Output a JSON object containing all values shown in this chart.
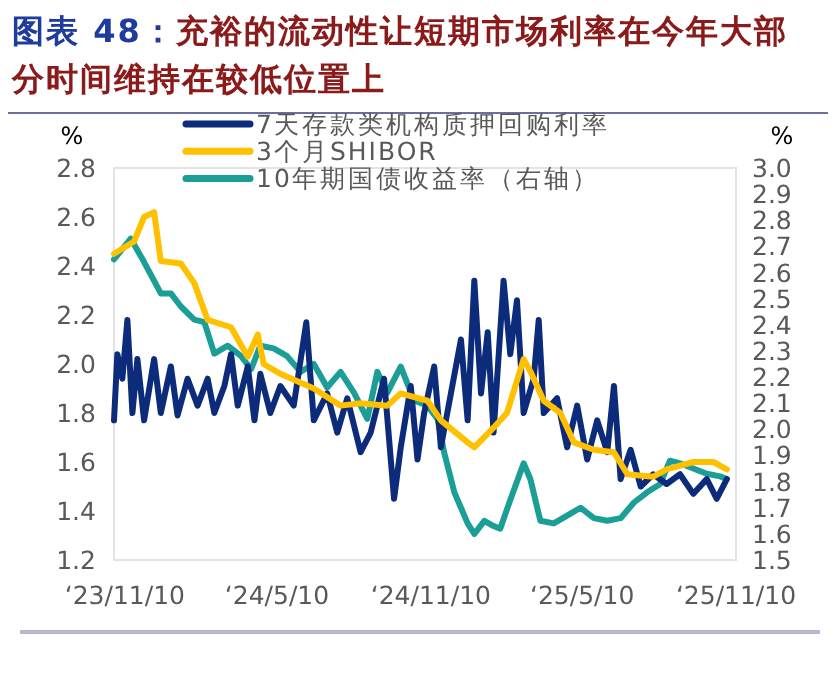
{
  "chart_data": {
    "type": "line",
    "title": "图表 48：充裕的流动性让短期市场利率在今年大部分时间维持在较低位置上",
    "ylabel": "%",
    "y2label": "%",
    "xlim": [
      "2023-10-28",
      "2025-11-10"
    ],
    "xticks": [
      {
        "value": "2023-11-10",
        "label": "‘23/11/10"
      },
      {
        "value": "2024-05-10",
        "label": "‘24/5/10"
      },
      {
        "value": "2024-11-10",
        "label": "‘24/11/10"
      },
      {
        "value": "2025-05-10",
        "label": "‘25/5/10"
      },
      {
        "value": "2025-11-10",
        "label": "‘25/11/10"
      }
    ],
    "ylim": [
      1.2,
      2.8
    ],
    "yticks": [
      1.2,
      1.4,
      1.6,
      1.8,
      {
        "value": 2,
        "label": "2.0"
      },
      2.2,
      2.4,
      2.6,
      2.8
    ],
    "y2lim": [
      1.5,
      3.0
    ],
    "y2ticks": [
      1.5,
      1.6,
      1.7,
      1.8,
      1.9,
      {
        "value": 2,
        "label": "2.0"
      },
      2.1,
      2.2,
      2.3,
      2.4,
      2.5,
      2.6,
      2.7,
      2.8,
      2.9,
      {
        "value": 3,
        "label": "3.0"
      }
    ],
    "legend": "top left",
    "grid": false,
    "series": [
      {
        "name": "7天存款类机构质押回购利率",
        "color": "#0c2b7a",
        "x": [
          "2023-10-28",
          "2023-11-01",
          "2023-11-07",
          "2023-11-13",
          "2023-11-19",
          "2023-11-25",
          "2023-12-03",
          "2023-12-15",
          "2023-12-23",
          "2024-01-04",
          "2024-01-12",
          "2024-01-24",
          "2024-02-05",
          "2024-02-17",
          "2024-02-25",
          "2024-03-08",
          "2024-03-16",
          "2024-03-24",
          "2024-04-05",
          "2024-04-13",
          "2024-04-20",
          "2024-05-02",
          "2024-05-14",
          "2024-05-30",
          "2024-06-14",
          "2024-06-23",
          "2024-07-09",
          "2024-07-21",
          "2024-08-02",
          "2024-08-18",
          "2024-08-30",
          "2024-09-15",
          "2024-09-27",
          "2024-10-05",
          "2024-10-17",
          "2024-10-25",
          "2024-11-02",
          "2024-11-14",
          "2024-11-22",
          "2024-12-04",
          "2024-12-16",
          "2024-12-24",
          "2025-01-01",
          "2025-01-09",
          "2025-01-17",
          "2025-01-24",
          "2025-02-05",
          "2025-02-13",
          "2025-02-21",
          "2025-03-01",
          "2025-03-13",
          "2025-03-19",
          "2025-03-25",
          "2025-04-10",
          "2025-04-22",
          "2025-05-04",
          "2025-05-16",
          "2025-05-28",
          "2025-06-09",
          "2025-06-17",
          "2025-06-25",
          "2025-07-07",
          "2025-07-19",
          "2025-08-03",
          "2025-08-19",
          "2025-09-04",
          "2025-09-20",
          "2025-10-06",
          "2025-10-18",
          "2025-10-30"
        ],
        "values": [
          1.77,
          2.04,
          1.94,
          2.18,
          1.8,
          2.02,
          1.77,
          2.02,
          1.8,
          1.99,
          1.79,
          1.94,
          1.83,
          1.94,
          1.8,
          1.91,
          2.04,
          1.83,
          1.99,
          1.77,
          1.96,
          1.8,
          1.91,
          1.83,
          2.17,
          1.77,
          1.88,
          1.72,
          1.86,
          1.64,
          1.72,
          1.94,
          1.45,
          1.66,
          1.91,
          1.61,
          1.8,
          1.99,
          1.66,
          1.88,
          2.1,
          1.77,
          2.34,
          1.88,
          2.13,
          1.72,
          2.34,
          2.04,
          2.26,
          1.8,
          1.94,
          2.18,
          1.8,
          1.86,
          1.66,
          1.83,
          1.61,
          1.77,
          1.64,
          1.91,
          1.53,
          1.65,
          1.5,
          1.55,
          1.51,
          1.55,
          1.47,
          1.53,
          1.45,
          1.53
        ]
      },
      {
        "name": "3个月SHIBOR",
        "color": "#ffc000",
        "x": [
          "2023-10-28",
          "2023-11-21",
          "2023-12-03",
          "2023-12-15",
          "2023-12-23",
          "2024-01-16",
          "2024-02-01",
          "2024-02-17",
          "2024-03-16",
          "2024-04-05",
          "2024-04-17",
          "2024-04-24",
          "2024-05-14",
          "2024-06-23",
          "2024-07-25",
          "2024-08-18",
          "2024-09-19",
          "2024-10-05",
          "2024-11-06",
          "2024-11-22",
          "2024-12-24",
          "2025-01-01",
          "2025-01-24",
          "2025-02-09",
          "2025-03-01",
          "2025-03-09",
          "2025-03-25",
          "2025-04-14",
          "2025-04-30",
          "2025-05-24",
          "2025-06-17",
          "2025-07-03",
          "2025-08-03",
          "2025-08-19",
          "2025-09-20",
          "2025-10-14",
          "2025-10-30"
        ],
        "values": [
          2.45,
          2.5,
          2.6,
          2.62,
          2.42,
          2.41,
          2.33,
          2.18,
          2.15,
          2.03,
          2.12,
          2.0,
          1.96,
          1.9,
          1.83,
          1.84,
          1.83,
          1.88,
          1.85,
          1.77,
          1.68,
          1.66,
          1.74,
          1.8,
          2.02,
          1.97,
          1.85,
          1.8,
          1.68,
          1.65,
          1.64,
          1.55,
          1.54,
          1.57,
          1.6,
          1.6,
          1.57
        ]
      },
      {
        "name": "10年期国债收益率（右轴）",
        "color": "#1a9e96",
        "axis": "y2",
        "x": [
          "2023-10-28",
          "2023-11-17",
          "2023-12-03",
          "2023-12-23",
          "2024-01-04",
          "2024-01-16",
          "2024-02-01",
          "2024-02-13",
          "2024-02-25",
          "2024-03-12",
          "2024-03-28",
          "2024-04-09",
          "2024-04-20",
          "2024-05-06",
          "2024-05-22",
          "2024-06-07",
          "2024-06-23",
          "2024-07-09",
          "2024-07-25",
          "2024-08-10",
          "2024-08-26",
          "2024-09-07",
          "2024-09-19",
          "2024-10-05",
          "2024-10-21",
          "2024-11-06",
          "2024-11-18",
          "2024-11-26",
          "2024-12-08",
          "2024-12-24",
          "2025-01-01",
          "2025-01-13",
          "2025-01-24",
          "2025-02-01",
          "2025-02-13",
          "2025-03-01",
          "2025-03-09",
          "2025-03-21",
          "2025-04-06",
          "2025-04-22",
          "2025-05-08",
          "2025-05-24",
          "2025-06-09",
          "2025-06-25",
          "2025-07-11",
          "2025-07-27",
          "2025-08-11",
          "2025-08-23",
          "2025-09-04",
          "2025-09-20",
          "2025-10-06",
          "2025-10-22",
          "2025-10-30"
        ],
        "values": [
          2.65,
          2.73,
          2.64,
          2.52,
          2.52,
          2.47,
          2.42,
          2.41,
          2.29,
          2.32,
          2.28,
          2.23,
          2.32,
          2.31,
          2.28,
          2.22,
          2.25,
          2.16,
          2.22,
          2.14,
          2.04,
          2.22,
          2.14,
          2.24,
          2.11,
          2.09,
          2.04,
          1.91,
          1.76,
          1.64,
          1.6,
          1.65,
          1.63,
          1.62,
          1.73,
          1.87,
          1.81,
          1.65,
          1.64,
          1.67,
          1.7,
          1.66,
          1.65,
          1.66,
          1.72,
          1.76,
          1.79,
          1.88,
          1.87,
          1.85,
          1.83,
          1.82,
          1.81
        ]
      }
    ]
  }
}
